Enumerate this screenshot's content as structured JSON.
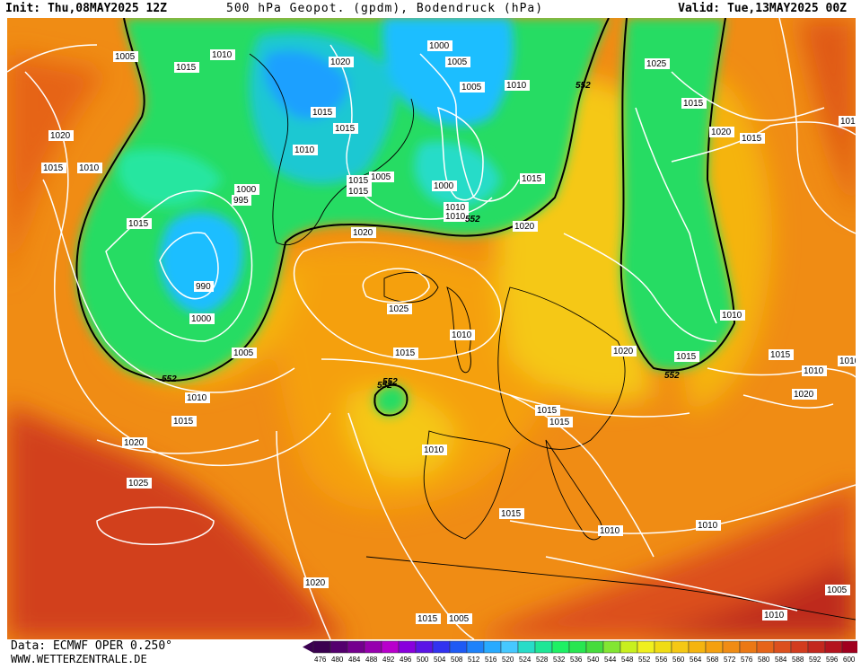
{
  "header": {
    "init": "Init: Thu,08MAY2025 12Z",
    "title": "500 hPa Geopot. (gpdm), Bodendruck (hPa)",
    "valid": "Valid: Tue,13MAY2025 00Z"
  },
  "footer": {
    "data_source": "Data: ECMWF OPER 0.250°",
    "website": "WWW.WETTERZENTRALE.DE"
  },
  "legend": {
    "values": [
      "476",
      "480",
      "484",
      "488",
      "492",
      "496",
      "500",
      "504",
      "508",
      "512",
      "516",
      "520",
      "524",
      "528",
      "532",
      "536",
      "540",
      "544",
      "548",
      "552",
      "556",
      "560",
      "564",
      "568",
      "572",
      "576",
      "580",
      "584",
      "588",
      "592",
      "596",
      "600"
    ],
    "colors": [
      "#3a0050",
      "#54006e",
      "#74008e",
      "#9600ae",
      "#b800cc",
      "#8800dd",
      "#5a14e6",
      "#3232f0",
      "#1e5af5",
      "#1e82fa",
      "#28aaff",
      "#46c8ff",
      "#28dcc8",
      "#1ee696",
      "#1ef064",
      "#28e650",
      "#46dc3c",
      "#82e632",
      "#c8f01e",
      "#f0f01e",
      "#f0dc14",
      "#f5c814",
      "#f5b40f",
      "#f5a00f",
      "#f08c14",
      "#eb7814",
      "#e66419",
      "#dc501e",
      "#d23c1e",
      "#c3281e",
      "#b4141e",
      "#a0001e"
    ]
  },
  "chart_data": {
    "type": "map",
    "field_units_height": "gpdm",
    "field_units_pressure": "hPa",
    "highlight_contour": "552",
    "contour_labels_552": [
      "552",
      "552",
      "552",
      "552",
      "552",
      "552"
    ],
    "isobar_labels": [
      "1005",
      "1015",
      "1010",
      "1020",
      "1015",
      "1010",
      "1015",
      "1015",
      "1010",
      "1005",
      "995",
      "1000",
      "990",
      "1000",
      "1005",
      "1010",
      "1015",
      "1020",
      "1025",
      "1020",
      "1025",
      "1015",
      "1010",
      "1015",
      "1005",
      "1020",
      "1015",
      "1000",
      "1000",
      "1005",
      "1010",
      "1015",
      "1020",
      "1025",
      "1015",
      "1020",
      "1015",
      "1015",
      "1010",
      "1020",
      "1015",
      "1015",
      "1010",
      "1020",
      "1015",
      "1010",
      "1015",
      "1010",
      "1010",
      "1005",
      "1005",
      "1015",
      "1010",
      "1010",
      "1015",
      "1010",
      "1015",
      "1020",
      "1010",
      "1015"
    ]
  }
}
